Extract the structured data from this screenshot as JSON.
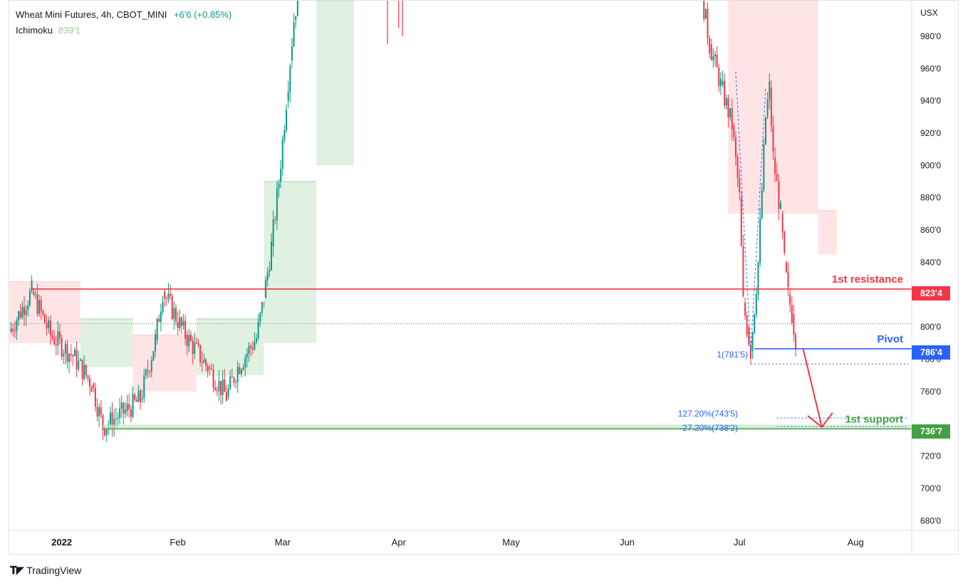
{
  "legend": {
    "symbol": "Wheat Mini Futures, 4h, CBOT_MINI",
    "change": "+6'6 (+0.85%)",
    "indicator_name": "Ichimoku",
    "indicator_value": "839'1"
  },
  "currency": "USX",
  "brand": "TradingView",
  "colors": {
    "resistance": "#f23645",
    "pivot": "#2962ff",
    "support": "#43a047",
    "fib": "#2962ff",
    "cloud_bull": "#c8e6c9",
    "cloud_bear": "#ffcdd2",
    "candle_up": "#089981",
    "candle_down": "#f23645",
    "arrow": "#f23645"
  },
  "chart_data": {
    "type": "candlestick",
    "y_axis": {
      "ticks": [
        680,
        700,
        720,
        760,
        780,
        800,
        840,
        860,
        880,
        900,
        920,
        940,
        960,
        980
      ],
      "tick_labels": [
        "680'0",
        "700'0",
        "720'0",
        "760'0",
        "780'0",
        "800'0",
        "840'0",
        "860'0",
        "880'0",
        "900'0",
        "920'0",
        "940'0",
        "960'0",
        "980'0"
      ],
      "range": [
        674,
        1002
      ],
      "unit": "USX"
    },
    "x_axis": {
      "range": [
        "2021-12-18",
        "2022-08-16"
      ],
      "ticks": [
        "2022-01-01",
        "2022-02-01",
        "2022-03-01",
        "2022-04-01",
        "2022-05-01",
        "2022-06-01",
        "2022-07-01",
        "2022-08-01"
      ],
      "tick_labels": [
        "2022",
        "Feb",
        "Mar",
        "Apr",
        "May",
        "Jun",
        "Jul",
        "Aug"
      ]
    },
    "price_path": [
      [
        "2021-12-18",
        797
      ],
      [
        "2021-12-24",
        822
      ],
      [
        "2021-12-29",
        795
      ],
      [
        "2022-01-04",
        782
      ],
      [
        "2022-01-09",
        765
      ],
      [
        "2022-01-12",
        738
      ],
      [
        "2022-01-18",
        748
      ],
      [
        "2022-01-22",
        755
      ],
      [
        "2022-01-26",
        792
      ],
      [
        "2022-01-28",
        822
      ],
      [
        "2022-02-03",
        795
      ],
      [
        "2022-02-09",
        775
      ],
      [
        "2022-02-14",
        757
      ],
      [
        "2022-02-17",
        775
      ],
      [
        "2022-02-22",
        793
      ],
      [
        "2022-02-24",
        818
      ],
      [
        "2022-02-26",
        850
      ],
      [
        "2022-02-28",
        890
      ],
      [
        "2022-03-02",
        940
      ],
      [
        "2022-03-03",
        965
      ],
      [
        "2022-03-04",
        990
      ],
      [
        "2022-03-05",
        1005
      ],
      [
        "2022-06-21",
        1005
      ],
      [
        "2022-06-23",
        975
      ],
      [
        "2022-06-26",
        950
      ],
      [
        "2022-06-29",
        925
      ],
      [
        "2022-07-01",
        880
      ],
      [
        "2022-07-02",
        815
      ],
      [
        "2022-07-03",
        800
      ],
      [
        "2022-07-04",
        785
      ],
      [
        "2022-07-06",
        840
      ],
      [
        "2022-07-08",
        930
      ],
      [
        "2022-07-09",
        948
      ],
      [
        "2022-07-10",
        905
      ],
      [
        "2022-07-12",
        870
      ],
      [
        "2022-07-13",
        840
      ],
      [
        "2022-07-14",
        820
      ],
      [
        "2022-07-15",
        808
      ],
      [
        "2022-07-16",
        793
      ]
    ],
    "april_spike": [
      [
        "2022-03-29",
        975,
        1005
      ],
      [
        "2022-04-01",
        985,
        1005
      ],
      [
        "2022-04-02",
        980,
        1005
      ]
    ],
    "ichimoku_cloud": [
      {
        "from": "2021-12-18",
        "to": "2022-01-06",
        "top": 828,
        "bottom": 790,
        "tone": "bear"
      },
      {
        "from": "2022-01-06",
        "to": "2022-01-20",
        "top": 805,
        "bottom": 775,
        "tone": "bull"
      },
      {
        "from": "2022-01-20",
        "to": "2022-02-06",
        "top": 795,
        "bottom": 760,
        "tone": "bear"
      },
      {
        "from": "2022-02-06",
        "to": "2022-02-24",
        "top": 805,
        "bottom": 770,
        "tone": "bull"
      },
      {
        "from": "2022-02-24",
        "to": "2022-03-10",
        "top": 890,
        "bottom": 790,
        "tone": "bull"
      },
      {
        "from": "2022-03-10",
        "to": "2022-03-20",
        "top": 1002,
        "bottom": 900,
        "tone": "bull"
      },
      {
        "from": "2022-06-28",
        "to": "2022-07-22",
        "top": 1002,
        "bottom": 870,
        "tone": "bear"
      },
      {
        "from": "2022-07-22",
        "to": "2022-07-27",
        "top": 872,
        "bottom": 845,
        "tone": "bear"
      }
    ],
    "levels": [
      {
        "name": "1st resistance",
        "value": 823.5,
        "price_label": "823'4",
        "from": "2021-12-24",
        "kind": "resistance"
      },
      {
        "name": "Pivot",
        "value": 786.5,
        "price_label": "786'4",
        "from": "2022-07-05",
        "kind": "pivot"
      },
      {
        "name": "1st support",
        "value": 736.875,
        "price_label": "736'7",
        "from": "2022-01-12",
        "kind": "support"
      }
    ],
    "fib": [
      {
        "label": "1(781'5)",
        "value": 781.6
      },
      {
        "label": "127.20%(743'5)",
        "value": 743.6
      },
      {
        "label": "-27.20%(738'2)",
        "value": 738.3
      }
    ],
    "pivot_ref_line": 802,
    "arrow": {
      "from": [
        "2022-07-18",
        786.5
      ],
      "to": [
        "2022-07-23",
        738
      ]
    }
  }
}
